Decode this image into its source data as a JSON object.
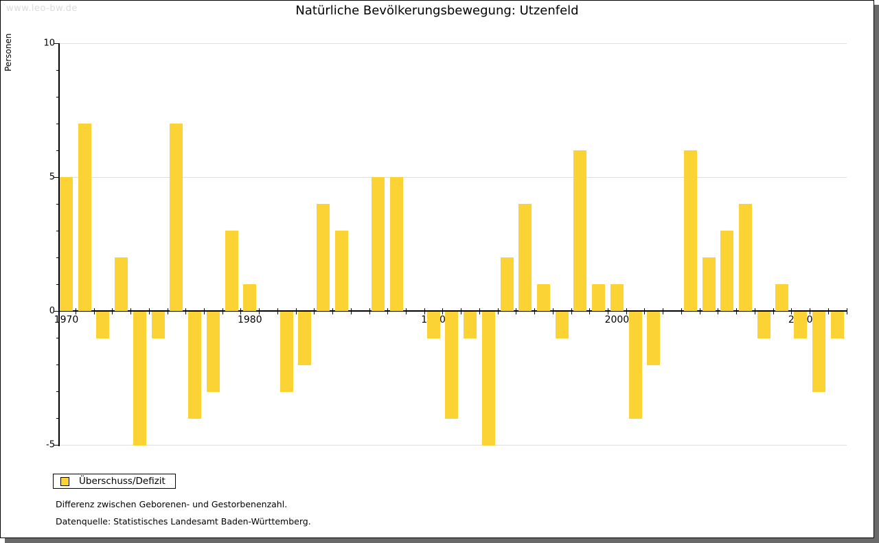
{
  "watermark": "www.leo-bw.de",
  "title": "Natürliche Bevölkerungsbewegung: Utzenfeld",
  "legend": {
    "label": "Überschuss/Defizit"
  },
  "notes": {
    "line1": "Differenz zwischen Geborenen- und Gestorbenenzahl.",
    "line2": "Datenquelle: Statistisches Landesamt Baden-Württemberg."
  },
  "colors": {
    "bar": "#FBD335",
    "gridline": "#DEDEDE",
    "axis": "#000000",
    "watermark": "#DCDCDC",
    "frame_shadow": "#696969"
  },
  "chart_data": {
    "type": "bar",
    "title": "Natürliche Bevölkerungsbewegung: Utzenfeld",
    "series_name": "Überschuss/Defizit",
    "xlabel": "",
    "ylabel": "Personen",
    "ylim": [
      -5,
      10
    ],
    "y_major_ticks": [
      10,
      5,
      0,
      -5
    ],
    "y_minor_tick_step": 1,
    "gridlines_at": [
      10,
      5,
      -5
    ],
    "x_label_ticks": [
      1970,
      1980,
      1990,
      2000,
      2010
    ],
    "grid": "horizontal-major-only",
    "legend_position": "bottom-left",
    "categories": [
      1970,
      1971,
      1972,
      1973,
      1974,
      1975,
      1976,
      1977,
      1978,
      1979,
      1980,
      1981,
      1982,
      1983,
      1984,
      1985,
      1986,
      1987,
      1988,
      1989,
      1990,
      1991,
      1992,
      1993,
      1994,
      1995,
      1996,
      1997,
      1998,
      1999,
      2000,
      2001,
      2002,
      2003,
      2004,
      2005,
      2006,
      2007,
      2008,
      2009,
      2010,
      2011,
      2012
    ],
    "values": [
      5,
      7,
      -1,
      2,
      -5,
      -1,
      7,
      -4,
      -3,
      3,
      1,
      0,
      -3,
      -2,
      4,
      3,
      0,
      5,
      5,
      0,
      -1,
      -4,
      -1,
      -5,
      2,
      4,
      1,
      -1,
      6,
      1,
      1,
      -4,
      -2,
      0,
      6,
      2,
      3,
      4,
      -1,
      1,
      -1,
      -3,
      -1
    ]
  }
}
